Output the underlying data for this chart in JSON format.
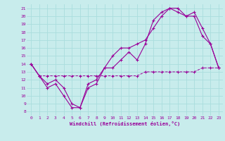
{
  "xlabel": "Windchill (Refroidissement éolien,°C)",
  "bg_color": "#c8ecec",
  "grid_color": "#aadddd",
  "line_color": "#990099",
  "xlim": [
    -0.5,
    23.5
  ],
  "ylim": [
    7.5,
    21.5
  ],
  "yticks": [
    8,
    9,
    10,
    11,
    12,
    13,
    14,
    15,
    16,
    17,
    18,
    19,
    20,
    21
  ],
  "xticks": [
    0,
    1,
    2,
    3,
    4,
    5,
    6,
    7,
    8,
    9,
    10,
    11,
    12,
    13,
    14,
    15,
    16,
    17,
    18,
    19,
    20,
    21,
    22,
    23
  ],
  "line1_x": [
    0,
    1,
    2,
    3,
    4,
    5,
    6,
    7,
    8,
    9,
    10,
    11,
    12,
    13,
    14,
    15,
    16,
    17,
    18,
    19,
    20,
    21,
    22,
    23
  ],
  "line1_y": [
    14,
    12.5,
    11,
    11.5,
    10,
    8.5,
    8.5,
    11,
    11.5,
    13.5,
    13.5,
    14.5,
    15.5,
    14.5,
    16.5,
    19.5,
    20.5,
    21.0,
    21.0,
    20.0,
    20.0,
    17.5,
    16.5,
    13.5
  ],
  "line2_x": [
    0,
    1,
    2,
    3,
    4,
    5,
    6,
    7,
    8,
    9,
    10,
    11,
    12,
    13,
    14,
    15,
    16,
    17,
    18,
    19,
    20,
    21,
    22,
    23
  ],
  "line2_y": [
    14,
    12.5,
    11.5,
    12,
    11,
    9,
    8.5,
    11.5,
    12,
    13.5,
    15,
    16,
    16,
    16.5,
    17,
    18.5,
    20.0,
    21.0,
    20.5,
    20.0,
    20.5,
    18.5,
    16.5,
    13.5
  ],
  "line3_x": [
    0,
    1,
    2,
    3,
    4,
    5,
    6,
    7,
    8,
    9,
    10,
    11,
    12,
    13,
    14,
    15,
    16,
    17,
    18,
    19,
    20,
    21,
    22,
    23
  ],
  "line3_y": [
    14,
    12.5,
    12.5,
    12.5,
    12.5,
    12.5,
    12.5,
    12.5,
    12.5,
    12.5,
    12.5,
    12.5,
    12.5,
    12.5,
    13.0,
    13.0,
    13.0,
    13.0,
    13.0,
    13.0,
    13.0,
    13.5,
    13.5,
    13.5
  ]
}
